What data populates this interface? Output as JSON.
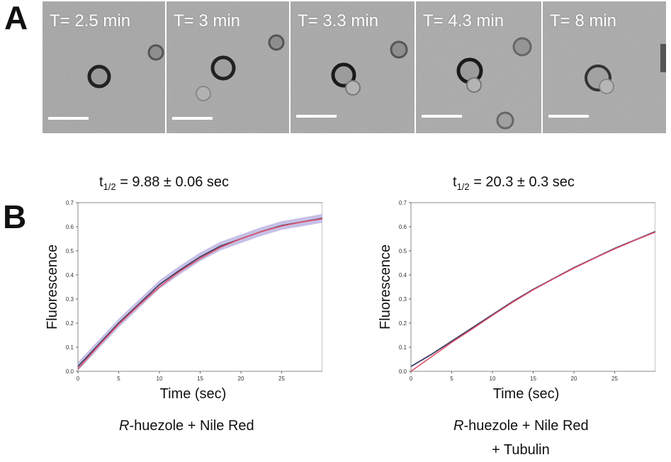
{
  "panel_a": {
    "letter": "A",
    "frames": [
      {
        "time_label": "T= 2.5 min"
      },
      {
        "time_label": "T= 3 min"
      },
      {
        "time_label": "T= 3.3 min"
      },
      {
        "time_label": "T= 4.3 min"
      },
      {
        "time_label": "T= 8 min"
      }
    ]
  },
  "panel_b": {
    "letter": "B",
    "left": {
      "t_half_prefix": "t",
      "t_half_sub": "1/2",
      "t_half_value": " = 9.88 ± 0.06 sec",
      "caption_italic": "R",
      "caption_rest": "-huezole + Nile Red",
      "caption_line2": ""
    },
    "right": {
      "t_half_prefix": "t",
      "t_half_sub": "1/2",
      "t_half_value": " = 20.3 ± 0.3 sec",
      "caption_italic": "R",
      "caption_rest": "-huezole + Nile Red",
      "caption_line2": "+ Tubulin"
    }
  },
  "chart_data": [
    {
      "type": "line",
      "xlabel": "Time (sec)",
      "ylabel": "Fluorescence",
      "xlim": [
        0,
        30
      ],
      "ylim": [
        0,
        0.7
      ],
      "xticks": [
        0,
        5,
        10,
        15,
        20,
        25
      ],
      "yticks": [
        0.0,
        0.1,
        0.2,
        0.3,
        0.4,
        0.5,
        0.6,
        0.7
      ],
      "grid": false,
      "series": [
        {
          "color": "#3a3a5a",
          "band_color": "#b8b0e0",
          "x": [
            0,
            2.5,
            5,
            7.5,
            10,
            12.5,
            15,
            17.5,
            20,
            22.5,
            25,
            27.5,
            30
          ],
          "y": [
            0.02,
            0.11,
            0.2,
            0.28,
            0.36,
            0.42,
            0.475,
            0.52,
            0.55,
            0.58,
            0.605,
            0.62,
            0.635
          ],
          "band": 0.018
        },
        {
          "color": "#e0506a",
          "x": [
            0,
            2.5,
            5,
            7.5,
            10,
            12.5,
            15,
            17.5,
            20,
            22.5,
            25,
            27.5,
            30
          ],
          "y": [
            0.01,
            0.105,
            0.195,
            0.275,
            0.35,
            0.415,
            0.468,
            0.515,
            0.55,
            0.58,
            0.603,
            0.62,
            0.633
          ]
        }
      ]
    },
    {
      "type": "line",
      "xlabel": "Time (sec)",
      "ylabel": "Fluorescence",
      "xlim": [
        0,
        30
      ],
      "ylim": [
        0,
        0.7
      ],
      "xticks": [
        0,
        5,
        10,
        15,
        20,
        25
      ],
      "yticks": [
        0.0,
        0.1,
        0.2,
        0.3,
        0.4,
        0.5,
        0.6,
        0.7
      ],
      "grid": false,
      "series": [
        {
          "color": "#3a3a5a",
          "band_color": "#b8b0e0",
          "x": [
            0,
            2.5,
            5,
            7.5,
            10,
            12.5,
            15,
            17.5,
            20,
            22.5,
            25,
            27.5,
            30
          ],
          "y": [
            0.02,
            0.07,
            0.125,
            0.18,
            0.235,
            0.29,
            0.34,
            0.385,
            0.43,
            0.47,
            0.51,
            0.545,
            0.58
          ],
          "band": 0.004
        },
        {
          "color": "#e0506a",
          "x": [
            0,
            2.5,
            5,
            7.5,
            10,
            12.5,
            15,
            17.5,
            20,
            22.5,
            25,
            27.5,
            30
          ],
          "y": [
            0.0,
            0.06,
            0.12,
            0.175,
            0.232,
            0.287,
            0.338,
            0.384,
            0.428,
            0.469,
            0.508,
            0.544,
            0.578
          ]
        }
      ]
    }
  ]
}
